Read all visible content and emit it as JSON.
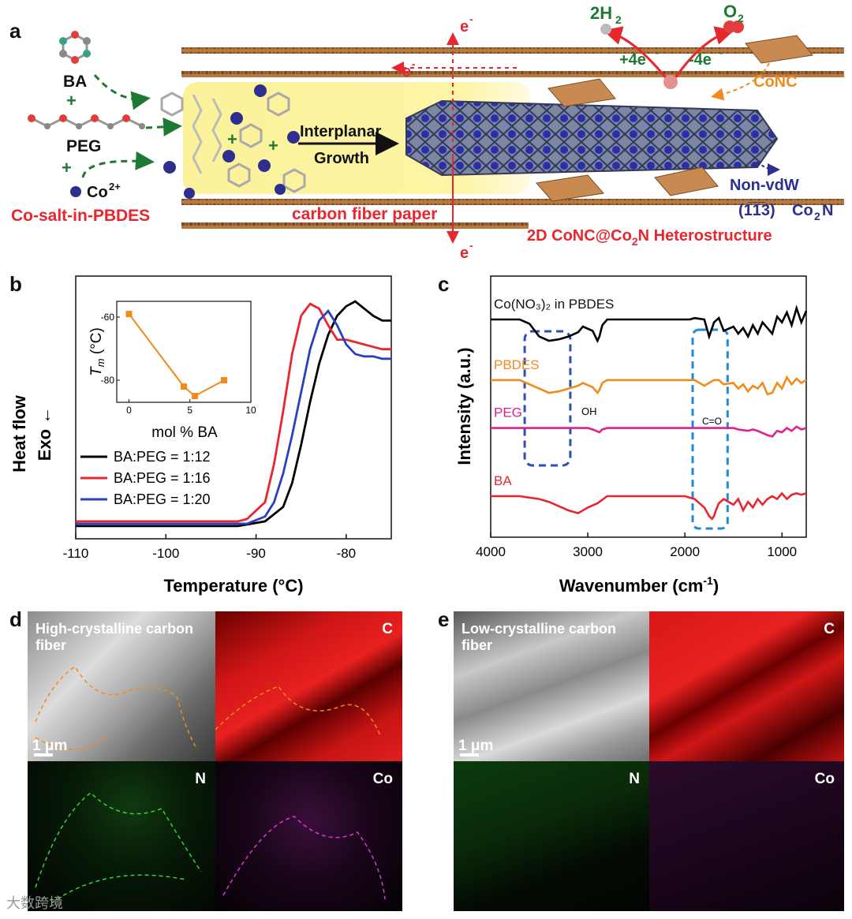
{
  "panels": {
    "a": "a",
    "b": "b",
    "c": "c",
    "d": "d",
    "e": "e"
  },
  "schematic": {
    "ba": "BA",
    "peg": "PEG",
    "co_ion": "Co",
    "co_charge": "2+",
    "plus": "+",
    "co_salt_label": "Co-salt-in-PBDES",
    "carbon_paper_label": "carbon fiber paper",
    "growth_line1": "Interplanar",
    "growth_line2": "Growth",
    "electron": "e",
    "electron_sup": "-",
    "h2": "2H",
    "h2_sub": "2",
    "o2": "O",
    "o2_sub": "2",
    "plus4e": "+4e",
    "minus4e": "-4e",
    "conc": "CoNC",
    "non_vdw": "Non-vdW",
    "plane": "(1̅1̅3)",
    "co2n": "Co",
    "co2n_sub": "2",
    "co2n_end": "N",
    "hetero_prefix": "2D CoNC@Co",
    "hetero_sub": "2",
    "hetero_suffix": "N Heterostructure"
  },
  "chart_data": [
    {
      "type": "line",
      "id": "b-dsc",
      "xlabel": "Temperature (°C)",
      "ylabel_line1": "Heat flow",
      "ylabel_line2": "Exo ←",
      "xlim": [
        -110,
        -75
      ],
      "xticks": [
        -110,
        -100,
        -90,
        -80
      ],
      "series": [
        {
          "name": "BA:PEG = 1:12",
          "color": "#000000",
          "x": [
            -110,
            -92,
            -89,
            -87,
            -86,
            -85,
            -84,
            -83,
            -82,
            -81,
            -80,
            -79,
            -78,
            -77,
            -76,
            -75
          ],
          "y": [
            0.02,
            0.02,
            0.04,
            0.1,
            0.2,
            0.36,
            0.54,
            0.7,
            0.82,
            0.9,
            0.94,
            0.96,
            0.93,
            0.9,
            0.88,
            0.88
          ]
        },
        {
          "name": "BA:PEG = 1:16",
          "color": "#e8262d",
          "x": [
            -110,
            -92,
            -91,
            -89,
            -88,
            -87,
            -86,
            -85,
            -84,
            -83,
            -82,
            -81,
            -80,
            -79,
            -78,
            -77,
            -76,
            -75
          ],
          "y": [
            0.04,
            0.04,
            0.05,
            0.12,
            0.28,
            0.5,
            0.74,
            0.9,
            0.95,
            0.93,
            0.86,
            0.8,
            0.8,
            0.79,
            0.78,
            0.77,
            0.76,
            0.76
          ]
        },
        {
          "name": "BA:PEG = 1:20",
          "color": "#2c3fbf",
          "x": [
            -110,
            -91,
            -89,
            -88,
            -87,
            -86,
            -85,
            -84,
            -83,
            -82,
            -81,
            -80,
            -79,
            -78,
            -77,
            -76,
            -75
          ],
          "y": [
            0.03,
            0.03,
            0.06,
            0.12,
            0.24,
            0.4,
            0.58,
            0.76,
            0.88,
            0.92,
            0.86,
            0.78,
            0.74,
            0.73,
            0.73,
            0.72,
            0.72
          ]
        }
      ],
      "inset": {
        "type": "line",
        "color": "#f28b1e",
        "x": [
          0,
          4.5,
          5.4,
          7.8
        ],
        "y": [
          -59,
          -82,
          -85,
          -80
        ],
        "xlim": [
          -1,
          10
        ],
        "ylim": [
          -87,
          -55
        ],
        "xticks": [
          0,
          5,
          10
        ],
        "yticks": [
          -60,
          -80
        ],
        "xlabel": "mol % BA",
        "ylabel": "T",
        "ylabel_sub": "m",
        "ylabel_unit": " (°C)"
      }
    },
    {
      "type": "line",
      "id": "c-ftir",
      "xlabel": "Wavenumber (cm",
      "xlabel_sup": "-1",
      "xlabel_end": ")",
      "ylabel": "Intensity (a.u.)",
      "xlim": [
        4000,
        750
      ],
      "xticks": [
        4000,
        3000,
        2000,
        1000
      ],
      "series": [
        {
          "name": "Co(NO3)2 in PBDES",
          "label": "Co(NO₃)₂ in PBDES",
          "color": "#000000",
          "offset": 0.8,
          "x": [
            4000,
            3700,
            3600,
            3500,
            3400,
            3300,
            3200,
            3100,
            3050,
            2950,
            2900,
            2880,
            2850,
            2800,
            2600,
            2000,
            1950,
            1900,
            1800,
            1750,
            1700,
            1650,
            1600,
            1500,
            1450,
            1400,
            1350,
            1300,
            1250,
            1200,
            1150,
            1100,
            1050,
            1000,
            950,
            900,
            850,
            800,
            750
          ],
          "y": [
            0,
            0,
            -0.03,
            -0.12,
            -0.15,
            -0.14,
            -0.12,
            -0.09,
            -0.05,
            -0.08,
            -0.15,
            -0.12,
            -0.04,
            0,
            0,
            0,
            0,
            0.01,
            0,
            -0.12,
            -0.02,
            0.01,
            -0.08,
            -0.05,
            -0.1,
            -0.06,
            -0.12,
            -0.04,
            -0.1,
            -0.02,
            -0.06,
            -0.1,
            0.02,
            -0.02,
            0.05,
            -0.04,
            0.08,
            -0.02,
            0.06
          ]
        },
        {
          "name": "PBDES",
          "label": "PBDES",
          "color": "#f28b1e",
          "offset": 0.56,
          "x": [
            4000,
            3700,
            3600,
            3500,
            3400,
            3300,
            3200,
            3100,
            3050,
            2950,
            2900,
            2880,
            2850,
            2800,
            2600,
            2000,
            1900,
            1800,
            1700,
            1650,
            1600,
            1500,
            1450,
            1400,
            1350,
            1300,
            1250,
            1200,
            1150,
            1100,
            1050,
            1000,
            950,
            900,
            850,
            800,
            750
          ],
          "y": [
            0,
            0,
            -0.03,
            -0.06,
            -0.09,
            -0.08,
            -0.06,
            -0.04,
            -0.02,
            -0.05,
            -0.09,
            -0.07,
            -0.02,
            0,
            0,
            0,
            0,
            -0.04,
            0,
            0,
            -0.03,
            -0.02,
            -0.06,
            -0.03,
            -0.08,
            -0.04,
            -0.06,
            -0.02,
            -0.1,
            -0.09,
            -0.02,
            -0.06,
            0.02,
            -0.03,
            0.01,
            -0.02,
            0
          ]
        },
        {
          "name": "PEG",
          "label": "PEG",
          "color": "#e0208e",
          "offset": 0.37,
          "x": [
            4000,
            3500,
            3000,
            2950,
            2880,
            2850,
            2800,
            2000,
            1500,
            1450,
            1350,
            1300,
            1250,
            1150,
            1100,
            1050,
            1000,
            950,
            900,
            850,
            800,
            750
          ],
          "y": [
            0,
            0,
            0,
            -0.01,
            -0.03,
            -0.01,
            0,
            0,
            0,
            -0.01,
            -0.02,
            -0.01,
            -0.02,
            -0.05,
            -0.06,
            -0.02,
            -0.03,
            0,
            -0.02,
            0.01,
            -0.01,
            0
          ]
        },
        {
          "name": "BA",
          "label": "BA",
          "color": "#e8262d",
          "offset": 0.1,
          "x": [
            4000,
            3700,
            3600,
            3500,
            3400,
            3300,
            3200,
            3100,
            3050,
            3000,
            2900,
            2800,
            2000,
            1900,
            1800,
            1750,
            1720,
            1700,
            1680,
            1650,
            1600,
            1500,
            1450,
            1400,
            1350,
            1300,
            1250,
            1200,
            1150,
            1100,
            1050,
            1000,
            950,
            900,
            850,
            800,
            750
          ],
          "y": [
            0,
            0,
            -0.01,
            -0.02,
            -0.04,
            -0.07,
            -0.1,
            -0.12,
            -0.1,
            -0.08,
            -0.05,
            0,
            0,
            -0.02,
            -0.08,
            -0.14,
            -0.16,
            -0.14,
            -0.1,
            -0.05,
            -0.02,
            -0.06,
            -0.02,
            -0.1,
            -0.04,
            -0.08,
            -0.02,
            -0.06,
            -0.02,
            0,
            -0.02,
            0.02,
            -0.02,
            0.01,
            0.02,
            0.01,
            0.02
          ]
        }
      ],
      "annotations": {
        "oh": "OH",
        "co": "C=O"
      }
    }
  ],
  "micro_d": {
    "title": "High-crystalline carbon fiber",
    "scale": "1 μm",
    "c": "C",
    "n": "N",
    "co": "Co"
  },
  "micro_e": {
    "title": "Low-crystalline carbon fiber",
    "scale": "1 μm",
    "c": "C",
    "n": "N",
    "co": "Co"
  },
  "watermark": "大数跨境"
}
